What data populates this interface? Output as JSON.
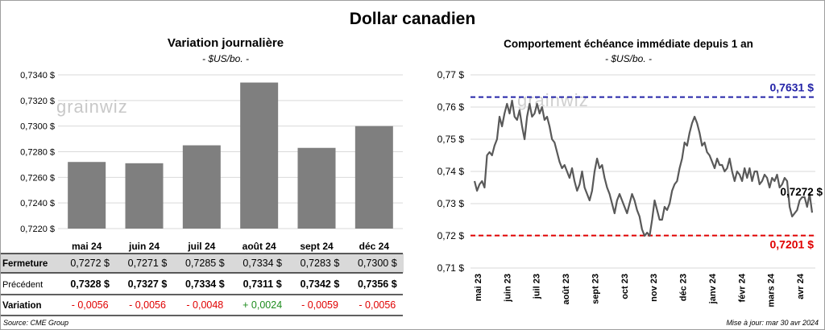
{
  "title": "Dollar canadien",
  "colors": {
    "bar": "#7f7f7f",
    "line": "#595959",
    "high": "#2424a8",
    "low": "#e00000",
    "neg": "#e00000",
    "pos": "#1e8c1e",
    "row_band": "#d9d9d9"
  },
  "watermark": "grainwiz",
  "chart_data": [
    {
      "type": "bar",
      "title": "Variation  journalière",
      "subtitle": "- $US/bo. -",
      "categories": [
        "mai 24",
        "juin 24",
        "juil 24",
        "août 24",
        "sept 24",
        "déc 24"
      ],
      "values": [
        0.7272,
        0.7271,
        0.7285,
        0.7334,
        0.7283,
        0.73
      ],
      "ylim": [
        0.722,
        0.734
      ],
      "yticks": [
        "0,7220 $",
        "0,7240 $",
        "0,7260 $",
        "0,7280 $",
        "0,7300 $",
        "0,7320 $",
        "0,7340 $"
      ],
      "grid": true
    },
    {
      "type": "line",
      "title": "Comportement échéance immédiate depuis 1 an",
      "subtitle": "- $US/bo. -",
      "ylim": [
        0.71,
        0.77
      ],
      "yticks": [
        "0,71 $",
        "0,72 $",
        "0,73 $",
        "0,74 $",
        "0,75 $",
        "0,76 $",
        "0,77 $"
      ],
      "xticks": [
        "mai 23",
        "juin 23",
        "juil 23",
        "août 23",
        "sept 23",
        "oct 23",
        "nov 23",
        "déc 23",
        "janv 24",
        "févr 24",
        "mars 24",
        "avr 24"
      ],
      "high": {
        "value": 0.7631,
        "label": "0,7631 $"
      },
      "low": {
        "value": 0.7201,
        "label": "0,7201 $"
      },
      "last": {
        "value": 0.7272,
        "label": "0,7272 $"
      },
      "series": [
        {
          "values": [
            0.737,
            0.734,
            0.736,
            0.737,
            0.735,
            0.745,
            0.746,
            0.745,
            0.748,
            0.75,
            0.757,
            0.754,
            0.758,
            0.761,
            0.758,
            0.762,
            0.757,
            0.756,
            0.759,
            0.754,
            0.75,
            0.757,
            0.761,
            0.757,
            0.758,
            0.761,
            0.758,
            0.76,
            0.756,
            0.757,
            0.754,
            0.75,
            0.749,
            0.746,
            0.743,
            0.741,
            0.742,
            0.74,
            0.738,
            0.741,
            0.737,
            0.734,
            0.736,
            0.74,
            0.735,
            0.733,
            0.731,
            0.734,
            0.74,
            0.744,
            0.741,
            0.742,
            0.738,
            0.735,
            0.733,
            0.73,
            0.727,
            0.731,
            0.733,
            0.731,
            0.729,
            0.727,
            0.73,
            0.733,
            0.731,
            0.728,
            0.726,
            0.722,
            0.72,
            0.721,
            0.72,
            0.725,
            0.731,
            0.728,
            0.725,
            0.725,
            0.729,
            0.728,
            0.73,
            0.734,
            0.736,
            0.737,
            0.741,
            0.744,
            0.749,
            0.748,
            0.752,
            0.755,
            0.757,
            0.755,
            0.752,
            0.748,
            0.749,
            0.746,
            0.745,
            0.743,
            0.741,
            0.744,
            0.742,
            0.742,
            0.74,
            0.741,
            0.744,
            0.74,
            0.737,
            0.74,
            0.739,
            0.737,
            0.741,
            0.738,
            0.741,
            0.737,
            0.74,
            0.74,
            0.736,
            0.737,
            0.739,
            0.738,
            0.735,
            0.738,
            0.737,
            0.739,
            0.735,
            0.736,
            0.738,
            0.737,
            0.729,
            0.726,
            0.727,
            0.728,
            0.731,
            0.732,
            0.732,
            0.729,
            0.733,
            0.7272
          ]
        }
      ]
    }
  ],
  "table": {
    "rows": [
      {
        "label": "Fermeture",
        "values": [
          "0,7272  $",
          "0,7271  $",
          "0,7285  $",
          "0,7334  $",
          "0,7283  $",
          "0,7300  $"
        ]
      },
      {
        "label": "Précédent",
        "values": [
          "0,7328  $",
          "0,7327  $",
          "0,7334  $",
          "0,7311  $",
          "0,7342  $",
          "0,7356  $"
        ]
      },
      {
        "label": "Variation",
        "values": [
          "- 0,0056",
          "- 0,0056",
          "- 0,0048",
          "+ 0,0024",
          "- 0,0059",
          "- 0,0056"
        ]
      }
    ]
  },
  "footer": {
    "source": "Source: CME Group",
    "updated": "Mise à jour: mar 30 avr 2024"
  }
}
